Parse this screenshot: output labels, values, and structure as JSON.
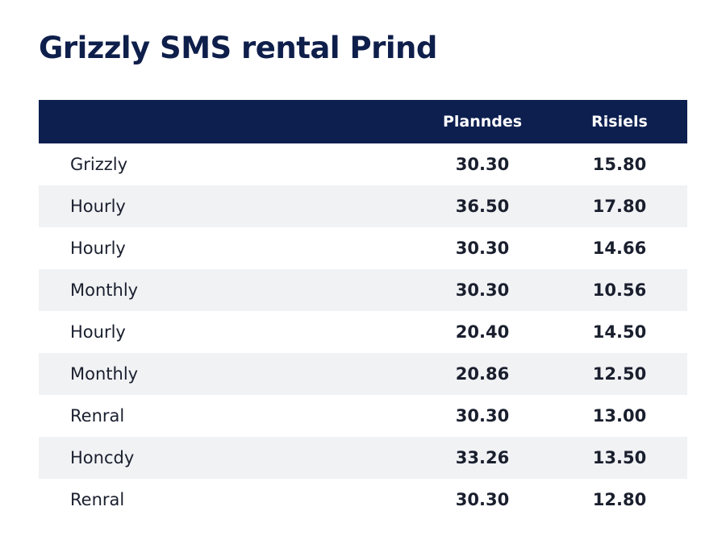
{
  "title": "Grizzly SMS rental Prind",
  "table": {
    "header": [
      "Planndes",
      "Risiels"
    ],
    "rows": [
      [
        "Grizzly",
        "30.30",
        "15.80"
      ],
      [
        "Hourly",
        "36.50",
        "17.80"
      ],
      [
        "Hourly",
        "30.30",
        "14.66"
      ],
      [
        "Monthly",
        "30.30",
        "10.56"
      ],
      [
        "Hourly",
        "20.40",
        "14.50"
      ],
      [
        "Monthly",
        "20.86",
        "12.50"
      ],
      [
        "Renral",
        "30.30",
        "13.00"
      ],
      [
        "Honcdy",
        "33.26",
        "13.50"
      ],
      [
        "Renral",
        "30.30",
        "12.80"
      ]
    ]
  }
}
